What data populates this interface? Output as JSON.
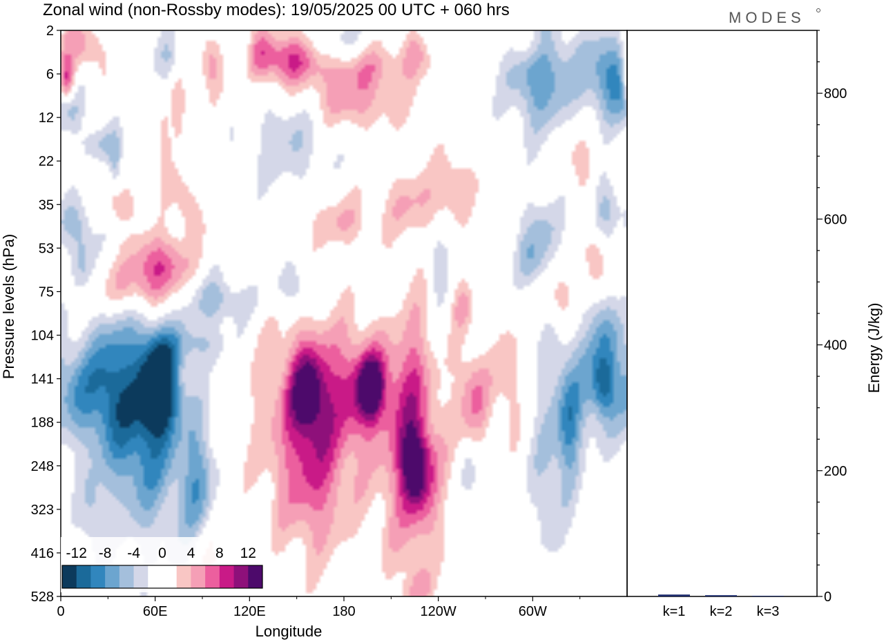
{
  "header": {
    "title": "Zonal wind (non-Rossby modes):  19/05/2025  00 UTC  + 060 hrs",
    "logo": "MODES"
  },
  "chart_data": [
    {
      "type": "heatmap",
      "title": "Zonal wind (non-Rossby modes):  19/05/2025  00 UTC  + 060 hrs",
      "xlabel": "Longitude",
      "ylabel": "Pressure levels (hPa)",
      "x_ticks": [
        "0",
        "60E",
        "120E",
        "180",
        "120W",
        "60W"
      ],
      "x_tick_values": [
        0,
        60,
        120,
        180,
        240,
        300
      ],
      "xlim": [
        0,
        360
      ],
      "y_ticks": [
        "2",
        "6",
        "12",
        "22",
        "35",
        "53",
        "75",
        "104",
        "141",
        "188",
        "248",
        "323",
        "416",
        "528"
      ],
      "colorbar": {
        "labels": [
          "-12",
          "-8",
          "-4",
          "0",
          "4",
          "8",
          "12"
        ],
        "colors": [
          "#0c3a5c",
          "#1b6a9a",
          "#3186bd",
          "#6ca5cf",
          "#a4bfdc",
          "#d4d7e8",
          "#ffffff",
          "#ffffff",
          "#f9c6c4",
          "#f59fb6",
          "#ec5f9e",
          "#c91a87",
          "#8e107a",
          "#4d0a6b"
        ]
      },
      "blobs": [
        {
          "lon": 4,
          "lev": 1.2,
          "rx": 4,
          "ry": 0.35,
          "v": 9
        },
        {
          "lon": 12,
          "lev": 0.4,
          "rx": 10,
          "ry": 0.45,
          "v": 6
        },
        {
          "lon": 2,
          "lev": 0.9,
          "rx": 3,
          "ry": 0.6,
          "v": 4
        },
        {
          "lon": 72,
          "lev": 0.7,
          "rx": 7,
          "ry": 0.45,
          "v": -5
        },
        {
          "lon": 95,
          "lev": 0.8,
          "rx": 5,
          "ry": 0.45,
          "v": 5
        },
        {
          "lon": 120,
          "lev": 0.45,
          "rx": 8,
          "ry": 0.4,
          "v": -5
        },
        {
          "lon": 125,
          "lev": 0.5,
          "rx": 6,
          "ry": 0.4,
          "v": 5
        },
        {
          "lon": 142,
          "lev": 0.6,
          "rx": 18,
          "ry": 0.45,
          "v": 8
        },
        {
          "lon": 172,
          "lev": 0.35,
          "rx": 15,
          "ry": 0.4,
          "v": -4
        },
        {
          "lon": 195,
          "lev": 0.8,
          "rx": 30,
          "ry": 0.35,
          "v": 4
        },
        {
          "lon": 185,
          "lev": 1.6,
          "rx": 22,
          "ry": 0.5,
          "v": 5
        },
        {
          "lon": 225,
          "lev": 0.4,
          "rx": 5,
          "ry": 0.3,
          "v": 4
        },
        {
          "lon": 298,
          "lev": 0.3,
          "rx": 8,
          "ry": 0.35,
          "v": 4
        },
        {
          "lon": 305,
          "lev": 1.0,
          "rx": 15,
          "ry": 0.9,
          "v": -8
        },
        {
          "lon": 350,
          "lev": 1.0,
          "rx": 12,
          "ry": 0.7,
          "v": -9
        },
        {
          "lon": 5,
          "lev": 1.8,
          "rx": 7,
          "ry": 0.4,
          "v": -4
        },
        {
          "lon": 25,
          "lev": 2.6,
          "rx": 8,
          "ry": 0.3,
          "v": -4
        },
        {
          "lon": 75,
          "lev": 1.5,
          "rx": 4,
          "ry": 0.8,
          "v": 4
        },
        {
          "lon": 35,
          "lev": 3.0,
          "rx": 3,
          "ry": 0.45,
          "v": -4
        },
        {
          "lon": 145,
          "lev": 2.5,
          "rx": 18,
          "ry": 0.8,
          "v": -4
        },
        {
          "lon": 65,
          "lev": 2.7,
          "rx": 3,
          "ry": 0.6,
          "v": 4
        },
        {
          "lon": 178,
          "lev": 4.4,
          "rx": 13,
          "ry": 0.4,
          "v": 4
        },
        {
          "lon": 225,
          "lev": 4.0,
          "rx": 15,
          "ry": 0.55,
          "v": 4
        },
        {
          "lon": 250,
          "lev": 3.5,
          "rx": 8,
          "ry": 0.5,
          "v": 4
        },
        {
          "lon": 330,
          "lev": 3.0,
          "rx": 6,
          "ry": 0.5,
          "v": 4
        },
        {
          "lon": 10,
          "lev": 4.4,
          "rx": 10,
          "ry": 0.4,
          "v": -4
        },
        {
          "lon": 38,
          "lev": 4.0,
          "rx": 8,
          "ry": 0.3,
          "v": 4
        },
        {
          "lon": 80,
          "lev": 4.0,
          "rx": 6,
          "ry": 0.5,
          "v": 4
        },
        {
          "lon": 305,
          "lev": 4.5,
          "rx": 10,
          "ry": 0.55,
          "v": -4
        },
        {
          "lon": 345,
          "lev": 4.0,
          "rx": 6,
          "ry": 0.6,
          "v": -4
        },
        {
          "lon": 62,
          "lev": 5.4,
          "rx": 14,
          "ry": 0.5,
          "v": 8
        },
        {
          "lon": 13,
          "lev": 5.3,
          "rx": 5,
          "ry": 0.5,
          "v": -5
        },
        {
          "lon": 42,
          "lev": 6.0,
          "rx": 18,
          "ry": 0.4,
          "v": 4
        },
        {
          "lon": 100,
          "lev": 6.2,
          "rx": 15,
          "ry": 0.4,
          "v": -5
        },
        {
          "lon": 150,
          "lev": 5.9,
          "rx": 12,
          "ry": 0.4,
          "v": -4
        },
        {
          "lon": 240,
          "lev": 5.3,
          "rx": 5,
          "ry": 0.6,
          "v": -4
        },
        {
          "lon": 300,
          "lev": 5.3,
          "rx": 8,
          "ry": 0.45,
          "v": -4
        },
        {
          "lon": 340,
          "lev": 5.3,
          "rx": 5,
          "ry": 0.5,
          "v": 6
        },
        {
          "lon": 318,
          "lev": 6.2,
          "rx": 6,
          "ry": 0.5,
          "v": 5
        },
        {
          "lon": 255,
          "lev": 6.3,
          "rx": 5,
          "ry": 0.45,
          "v": 4
        },
        {
          "lon": 10,
          "lev": 8.3,
          "rx": 12,
          "ry": 0.85,
          "v": -6
        },
        {
          "lon": 30,
          "lev": 8.0,
          "rx": 8,
          "ry": 1.0,
          "v": -4
        },
        {
          "lon": 47,
          "lev": 8.5,
          "rx": 18,
          "ry": 1.4,
          "v": -9
        },
        {
          "lon": 63,
          "lev": 8.2,
          "rx": 8,
          "ry": 0.65,
          "v": -13
        },
        {
          "lon": 82,
          "lev": 7.2,
          "rx": 20,
          "ry": 0.35,
          "v": -4
        },
        {
          "lon": 88,
          "lev": 10.5,
          "rx": 7,
          "ry": 1.1,
          "v": -6
        },
        {
          "lon": 60,
          "lev": 10.2,
          "rx": 20,
          "ry": 1.5,
          "v": -4
        },
        {
          "lon": 160,
          "lev": 8.6,
          "rx": 25,
          "ry": 1.5,
          "v": 6
        },
        {
          "lon": 157,
          "lev": 8.3,
          "rx": 8,
          "ry": 0.7,
          "v": 9
        },
        {
          "lon": 197,
          "lev": 8.2,
          "rx": 16,
          "ry": 0.85,
          "v": 7
        },
        {
          "lon": 197,
          "lev": 8.2,
          "rx": 5,
          "ry": 0.45,
          "v": 10
        },
        {
          "lon": 225,
          "lev": 8.0,
          "rx": 8,
          "ry": 1.5,
          "v": 5
        },
        {
          "lon": 225,
          "lev": 10.5,
          "rx": 16,
          "ry": 1.4,
          "v": 6
        },
        {
          "lon": 225,
          "lev": 10.0,
          "rx": 6,
          "ry": 0.6,
          "v": 10
        },
        {
          "lon": 160,
          "lev": 10.5,
          "rx": 16,
          "ry": 1.2,
          "v": 5
        },
        {
          "lon": 262,
          "lev": 8.4,
          "rx": 8,
          "ry": 0.8,
          "v": 6
        },
        {
          "lon": 285,
          "lev": 8.0,
          "rx": 6,
          "ry": 1.0,
          "v": 4
        },
        {
          "lon": 330,
          "lev": 8.0,
          "rx": 18,
          "ry": 1.2,
          "v": -5
        },
        {
          "lon": 347,
          "lev": 7.0,
          "rx": 6,
          "ry": 0.8,
          "v": -5
        },
        {
          "lon": 345,
          "lev": 8.2,
          "rx": 5,
          "ry": 0.5,
          "v": -7
        },
        {
          "lon": 323,
          "lev": 9.2,
          "rx": 5,
          "ry": 0.9,
          "v": -6
        },
        {
          "lon": 310,
          "lev": 10.5,
          "rx": 8,
          "ry": 1.2,
          "v": -4
        },
        {
          "lon": 260,
          "lev": 10.2,
          "rx": 4,
          "ry": 0.5,
          "v": -4
        },
        {
          "lon": 225,
          "lev": 13.0,
          "rx": 6,
          "ry": 0.5,
          "v": 4
        },
        {
          "lon": 95,
          "lev": 12.3,
          "rx": 6,
          "ry": 0.8,
          "v": 4
        },
        {
          "lon": 20,
          "lev": 11.2,
          "rx": 6,
          "ry": 0.7,
          "v": -4
        }
      ]
    },
    {
      "type": "bar",
      "categories": [
        "k=1",
        "k=2",
        "k=3"
      ],
      "values": [
        3,
        2,
        1
      ],
      "ylabel": "Energy (J/kg)",
      "ylim": [
        0,
        900
      ],
      "y_ticks": [
        0,
        200,
        400,
        600,
        800
      ],
      "bar_color": "#1b2a6b"
    }
  ]
}
